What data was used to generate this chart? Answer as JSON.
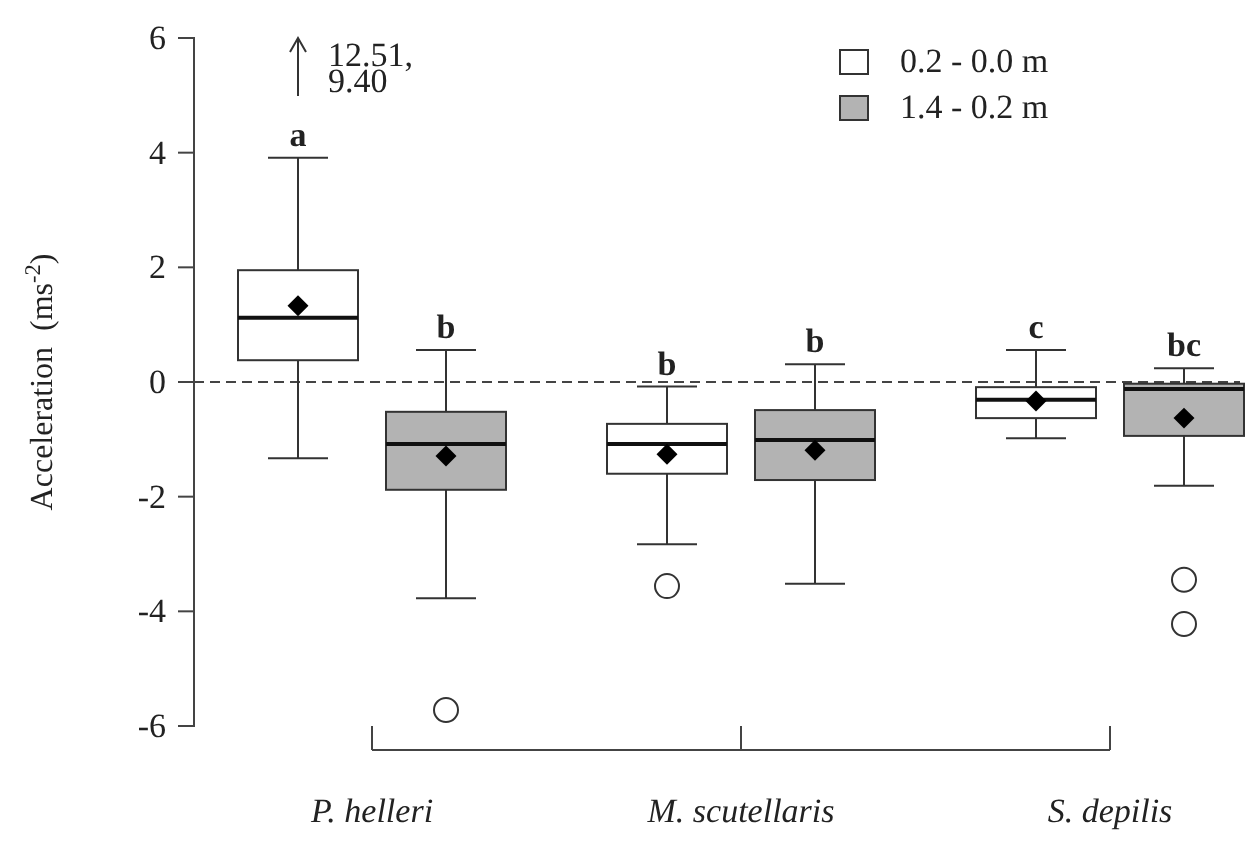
{
  "chart_data": {
    "type": "box",
    "ylabel": "Acceleration  (ms$^{-2}$)",
    "categories": [
      "P. helleri",
      "M. scutellaris",
      "S. depilis"
    ],
    "series": [
      {
        "name": "0.2 - 0.0 m",
        "color": "#ffffff",
        "boxes": [
          {
            "low": -1.33,
            "q1": 0.38,
            "median": 1.12,
            "q3": 1.95,
            "high": 3.91,
            "mean": 1.33
          },
          {
            "low": -2.83,
            "q1": -1.6,
            "median": -1.08,
            "q3": -0.73,
            "high": -0.08,
            "mean": -1.26,
            "outliers": [
              -3.56
            ]
          },
          {
            "low": -0.98,
            "q1": -0.63,
            "median": -0.31,
            "q3": -0.09,
            "high": 0.56,
            "mean": -0.33
          }
        ]
      },
      {
        "name": "1.4 - 0.2 m",
        "color": "#b3b3b3",
        "boxes": [
          {
            "low": -3.77,
            "q1": -1.88,
            "median": -1.08,
            "q3": -0.52,
            "high": 0.56,
            "mean": -1.29,
            "outliers": [
              -5.72
            ]
          },
          {
            "low": -3.52,
            "q1": -1.71,
            "median": -1.01,
            "q3": -0.49,
            "high": 0.31,
            "mean": -1.19
          },
          {
            "low": -1.81,
            "q1": -0.94,
            "median": -0.12,
            "q3": -0.03,
            "high": 0.24,
            "mean": -0.63,
            "outliers": [
              -3.45,
              -4.22
            ]
          }
        ]
      }
    ],
    "ylim": [
      -6,
      6
    ],
    "yticks": [
      -6,
      -4,
      -2,
      0,
      2,
      4,
      6
    ],
    "ref_lines": [
      {
        "axis": "y",
        "value": 0,
        "line_style": "dashed"
      }
    ],
    "annotations": [
      "a",
      "b",
      "b",
      "b",
      "c",
      "bc",
      "12.51,\n9.40"
    ],
    "legend": "top right"
  }
}
